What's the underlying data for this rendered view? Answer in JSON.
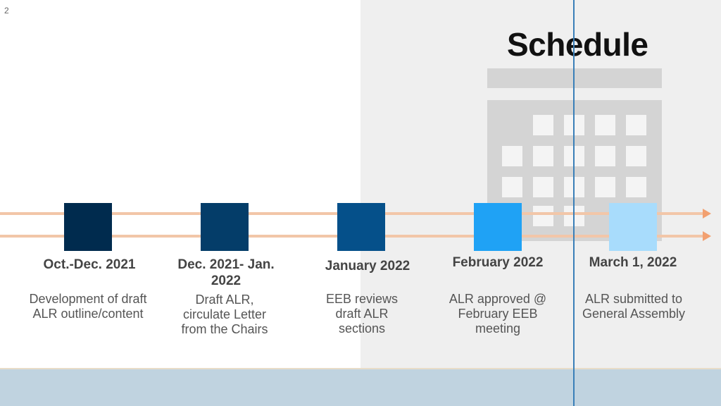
{
  "page_number": "2",
  "title": "Schedule",
  "colors": {
    "step1": "#002b4e",
    "step2": "#043d69",
    "step3": "#05508a",
    "step4": "#1fa2f5",
    "step5": "#a8dcfc"
  },
  "steps": [
    {
      "date": "Oct.-Dec. 2021",
      "description": "Development of draft ALR outline/content"
    },
    {
      "date": "Dec. 2021- Jan. 2022",
      "description": "Draft ALR, circulate Letter from the Chairs"
    },
    {
      "date": "January 2022",
      "description": "EEB reviews draft ALR sections"
    },
    {
      "date": "February 2022",
      "description": "ALR approved @ February EEB meeting"
    },
    {
      "date": "March 1, 2022",
      "description": "ALR submitted to General Assembly"
    }
  ]
}
